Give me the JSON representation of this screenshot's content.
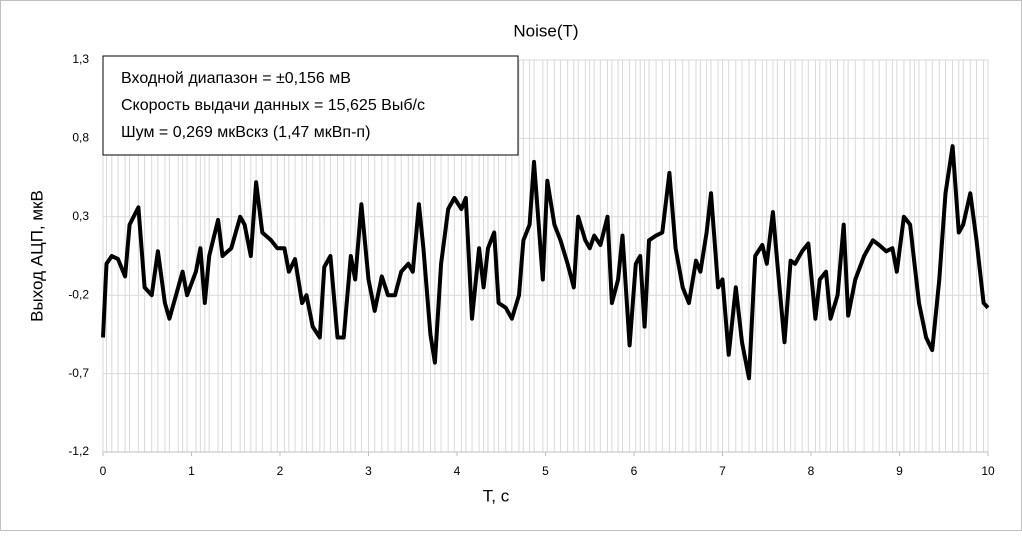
{
  "chart_data": {
    "type": "line",
    "title": "Noise(T)",
    "xlabel": "T, c",
    "ylabel": "Выход АЦП, мкВ",
    "annotations": [
      "Входной диапазон = ±0,156 мВ",
      "Скорость выдачи данных = 15,625 Выб/с",
      "Шум = 0,269 мкВскз (1,47 мкВп-п)"
    ],
    "color": "#000000",
    "grid": true,
    "xlim": [
      0,
      10
    ],
    "xticks": [
      0,
      1,
      2,
      3,
      4,
      5,
      6,
      7,
      8,
      9,
      10
    ],
    "ylim": [
      -1.2,
      1.3
    ],
    "yticks": [
      {
        "value": -1.2,
        "label": "-1,2"
      },
      {
        "value": -0.7,
        "label": "-0,7"
      },
      {
        "value": -0.2,
        "label": "-0,2"
      },
      {
        "value": 0.3,
        "label": "0,3"
      },
      {
        "value": 0.8,
        "label": "0,8"
      },
      {
        "value": 1.3,
        "label": "1,3"
      }
    ],
    "x": [
      0,
      0.04,
      0.1,
      0.17,
      0.25,
      0.3,
      0.4,
      0.47,
      0.55,
      0.62,
      0.7,
      0.75,
      0.85,
      0.9,
      0.95,
      1.05,
      1.1,
      1.15,
      1.2,
      1.3,
      1.35,
      1.45,
      1.55,
      1.6,
      1.67,
      1.73,
      1.8,
      1.9,
      1.97,
      2.05,
      2.1,
      2.17,
      2.25,
      2.3,
      2.37,
      2.45,
      2.5,
      2.57,
      2.65,
      2.72,
      2.8,
      2.85,
      2.92,
      3.0,
      3.07,
      3.15,
      3.22,
      3.3,
      3.37,
      3.45,
      3.5,
      3.57,
      3.62,
      3.7,
      3.75,
      3.82,
      3.9,
      3.97,
      4.05,
      4.1,
      4.17,
      4.25,
      4.3,
      4.35,
      4.42,
      4.47,
      4.55,
      4.62,
      4.7,
      4.75,
      4.82,
      4.87,
      4.97,
      5.02,
      5.1,
      5.17,
      5.25,
      5.32,
      5.37,
      5.45,
      5.5,
      5.55,
      5.62,
      5.7,
      5.75,
      5.82,
      5.87,
      5.95,
      6.02,
      6.07,
      6.12,
      6.17,
      6.25,
      6.32,
      6.4,
      6.47,
      6.55,
      6.62,
      6.7,
      6.75,
      6.82,
      6.87,
      6.95,
      7.0,
      7.07,
      7.15,
      7.22,
      7.3,
      7.37,
      7.45,
      7.5,
      7.57,
      7.62,
      7.7,
      7.77,
      7.82,
      7.9,
      7.97,
      8.05,
      8.1,
      8.17,
      8.22,
      8.3,
      8.37,
      8.42,
      8.5,
      8.6,
      8.7,
      8.77,
      8.85,
      8.92,
      8.97,
      9.05,
      9.12,
      9.17,
      9.22,
      9.3,
      9.37,
      9.45,
      9.52,
      9.6,
      9.67,
      9.72,
      9.8,
      9.87,
      9.95,
      10.0
    ],
    "values": [
      -0.47,
      0.0,
      0.05,
      0.03,
      -0.08,
      0.25,
      0.36,
      -0.15,
      -0.2,
      0.08,
      -0.25,
      -0.35,
      -0.15,
      -0.05,
      -0.2,
      -0.05,
      0.1,
      -0.25,
      0.05,
      0.28,
      0.05,
      0.1,
      0.3,
      0.25,
      0.05,
      0.52,
      0.2,
      0.15,
      0.1,
      0.1,
      -0.05,
      0.03,
      -0.25,
      -0.2,
      -0.4,
      -0.47,
      -0.02,
      0.05,
      -0.47,
      -0.47,
      0.05,
      -0.1,
      0.38,
      -0.1,
      -0.3,
      -0.08,
      -0.2,
      -0.2,
      -0.05,
      0.0,
      -0.05,
      0.38,
      0.1,
      -0.45,
      -0.63,
      0.0,
      0.35,
      0.42,
      0.35,
      0.42,
      -0.35,
      0.1,
      -0.15,
      0.1,
      0.2,
      -0.25,
      -0.28,
      -0.35,
      -0.2,
      0.15,
      0.25,
      0.65,
      -0.1,
      0.53,
      0.25,
      0.15,
      0.0,
      -0.15,
      0.3,
      0.15,
      0.1,
      0.18,
      0.12,
      0.3,
      -0.25,
      -0.1,
      0.18,
      -0.52,
      0.0,
      0.05,
      -0.4,
      0.15,
      0.18,
      0.2,
      0.58,
      0.1,
      -0.15,
      -0.25,
      0.02,
      -0.05,
      0.2,
      0.45,
      -0.15,
      -0.1,
      -0.58,
      -0.15,
      -0.5,
      -0.73,
      0.05,
      0.12,
      0.0,
      0.33,
      0.0,
      -0.5,
      0.02,
      0.0,
      0.08,
      0.13,
      -0.35,
      -0.1,
      -0.05,
      -0.35,
      -0.2,
      0.25,
      -0.33,
      -0.1,
      0.05,
      0.15,
      0.12,
      0.08,
      0.1,
      -0.05,
      0.3,
      0.25,
      0.0,
      -0.25,
      -0.47,
      -0.55,
      -0.1,
      0.45,
      0.75,
      0.2,
      0.25,
      0.45,
      0.15,
      -0.25,
      -0.28
    ]
  }
}
